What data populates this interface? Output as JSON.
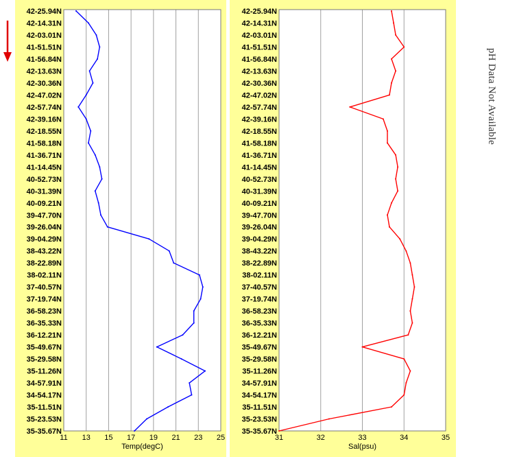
{
  "side_note": "pH Data Not Available",
  "colors": {
    "panel_bg": "#FFFF99",
    "plot_bg": "#FFFFFF",
    "grid": "#A0A0A0",
    "temp_line": "#0000FF",
    "sal_line": "#FF0000",
    "arrow": "#E00000"
  },
  "icons": {
    "direction_arrow": "down-arrow-icon"
  },
  "chart_data": [
    {
      "type": "line",
      "xlabel": "Temp(degC)",
      "ylabel": "",
      "xlim": [
        11,
        25
      ],
      "xticks": [
        "11",
        "13",
        "15",
        "17",
        "19",
        "21",
        "23",
        "25"
      ],
      "yticks": [
        "42-25.94N",
        "42-14.31N",
        "42-03.01N",
        "41-51.51N",
        "41-56.84N",
        "42-13.63N",
        "42-30.36N",
        "42-47.02N",
        "42-57.74N",
        "42-39.16N",
        "42-18.55N",
        "41-58.18N",
        "41-36.71N",
        "41-14.45N",
        "40-52.73N",
        "40-31.39N",
        "40-09.21N",
        "39-47.70N",
        "39-26.04N",
        "39-04.29N",
        "38-43.22N",
        "38-22.89N",
        "38-02.11N",
        "37-40.57N",
        "37-19.74N",
        "36-58.23N",
        "36-35.33N",
        "36-12.21N",
        "35-49.67N",
        "35-29.58N",
        "35-11.26N",
        "34-57.91N",
        "34-54.17N",
        "35-11.51N",
        "35-23.53N",
        "35-35.67N"
      ],
      "grid": "vertical",
      "series": [
        {
          "color": "#0000FF",
          "values": [
            12.1,
            13.2,
            13.9,
            14.2,
            14.0,
            13.3,
            13.6,
            13.0,
            12.3,
            13.0,
            13.4,
            13.2,
            13.8,
            14.2,
            14.4,
            13.8,
            14.1,
            14.3,
            14.9,
            18.6,
            20.4,
            20.8,
            23.1,
            23.4,
            23.2,
            22.6,
            22.6,
            21.6,
            19.3,
            21.5,
            23.6,
            22.2,
            22.4,
            20.3,
            18.4,
            17.3
          ]
        }
      ]
    },
    {
      "type": "line",
      "xlabel": "Sal(psu)",
      "ylabel": "",
      "xlim": [
        31,
        35
      ],
      "xticks": [
        "31",
        "32",
        "33",
        "34",
        "35"
      ],
      "yticks": [
        "42-25.94N",
        "42-14.31N",
        "42-03.01N",
        "41-51.51N",
        "41-56.84N",
        "42-13.63N",
        "42-30.36N",
        "42-47.02N",
        "42-57.74N",
        "42-39.16N",
        "42-18.55N",
        "41-58.18N",
        "41-36.71N",
        "41-14.45N",
        "40-52.73N",
        "40-31.39N",
        "40-09.21N",
        "39-47.70N",
        "39-26.04N",
        "39-04.29N",
        "38-43.22N",
        "38-22.89N",
        "38-02.11N",
        "37-40.57N",
        "37-19.74N",
        "36-58.23N",
        "36-35.33N",
        "36-12.21N",
        "35-49.67N",
        "35-29.58N",
        "35-11.26N",
        "34-57.91N",
        "34-54.17N",
        "35-11.51N",
        "35-23.53N",
        "35-35.67N"
      ],
      "grid": "vertical",
      "series": [
        {
          "color": "#FF0000",
          "values": [
            33.7,
            33.75,
            33.8,
            34.0,
            33.7,
            33.8,
            33.7,
            33.65,
            32.7,
            33.5,
            33.6,
            33.6,
            33.8,
            33.85,
            33.8,
            33.85,
            33.7,
            33.6,
            33.65,
            33.9,
            34.05,
            34.15,
            34.2,
            34.25,
            34.2,
            34.15,
            34.2,
            34.1,
            33.0,
            34.0,
            34.15,
            34.05,
            34.0,
            33.7,
            32.2,
            31.0
          ]
        }
      ]
    }
  ]
}
